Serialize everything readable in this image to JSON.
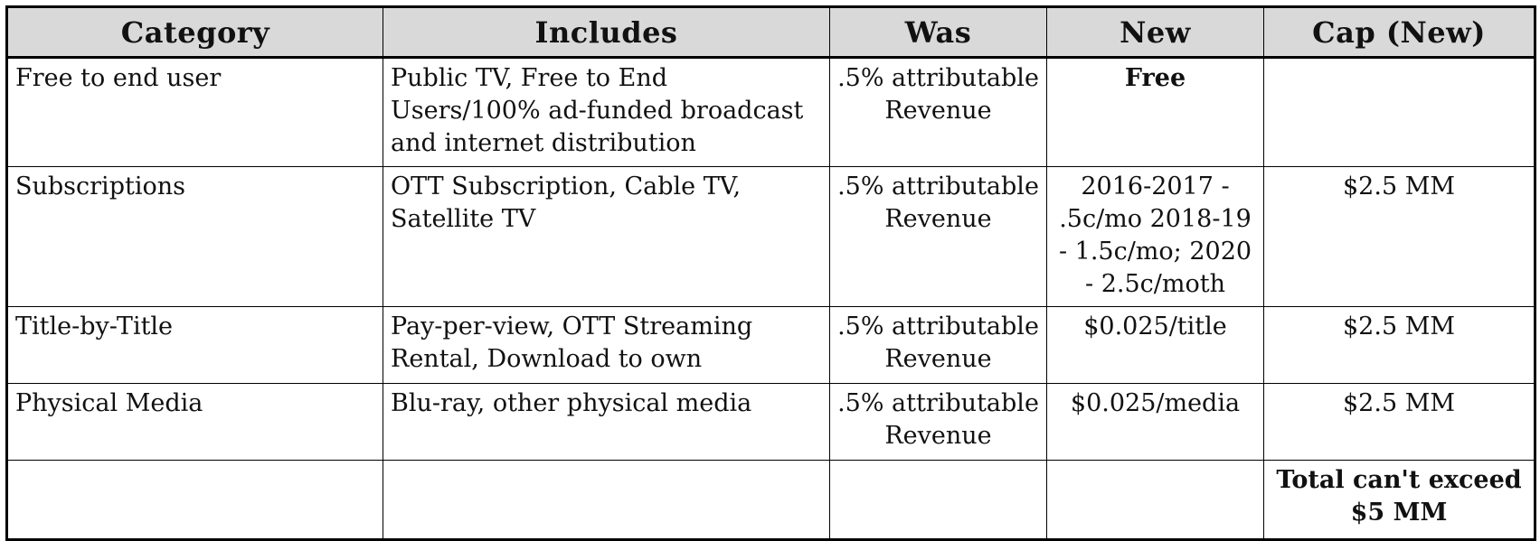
{
  "table": {
    "headers": [
      "Category",
      "Includes",
      "Was",
      "New",
      "Cap (New)"
    ],
    "rows": [
      {
        "category": "Free to end user",
        "includes": "Public TV, Free to End Users/100% ad-funded broadcast and internet distribution",
        "was": ".5% attributable Revenue",
        "new": "Free",
        "cap": ""
      },
      {
        "category": "Subscriptions",
        "includes": "OTT Subscription, Cable TV, Satellite TV",
        "was": ".5% attributable Revenue",
        "new": "2016-2017 - .5c/mo  2018-19 - 1.5c/mo; 2020 - 2.5c/moth",
        "cap": "$2.5 MM"
      },
      {
        "category": "Title-by-Title",
        "includes": "Pay-per-view, OTT Streaming Rental, Download to own",
        "was": ".5% attributable Revenue",
        "new": "$0.025/title",
        "cap": "$2.5 MM"
      },
      {
        "category": "Physical Media",
        "includes": "Blu-ray, other physical media",
        "was": ".5% attributable Revenue",
        "new": "$0.025/media",
        "cap": "$2.5 MM"
      },
      {
        "category": "",
        "includes": "",
        "was": "",
        "new": "",
        "cap": "Total can't exceed $5 MM"
      }
    ]
  },
  "colors": {
    "header_background": "#d9d9d9",
    "border": "#000000",
    "text": "#111111"
  }
}
